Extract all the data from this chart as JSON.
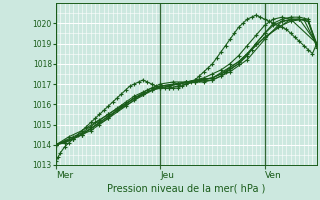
{
  "xlabel": "Pression niveau de la mer( hPa )",
  "bg_color": "#cce8df",
  "grid_color": "#ffffff",
  "line_color": "#1a5c1a",
  "vline_color": "#336633",
  "ylim": [
    1013,
    1021.0
  ],
  "yticks": [
    1013,
    1014,
    1015,
    1016,
    1017,
    1018,
    1019,
    1020
  ],
  "day_labels": [
    "Mer",
    "Jeu",
    "Ven"
  ],
  "day_positions": [
    0,
    48,
    96
  ],
  "xlim": [
    0,
    120
  ],
  "series": [
    {
      "x": [
        0,
        1,
        2,
        4,
        6,
        8,
        10,
        12,
        14,
        16,
        18,
        20,
        22,
        24,
        26,
        28,
        30,
        32,
        34,
        36,
        38,
        40,
        42,
        44,
        46,
        48,
        50,
        52,
        54,
        56,
        58,
        60,
        62,
        64,
        66,
        68,
        70,
        72,
        74,
        76,
        78,
        80,
        82,
        84,
        86,
        88,
        90,
        92,
        94,
        96,
        98,
        100,
        102,
        104,
        106,
        108,
        110,
        112,
        114,
        116,
        118,
        120
      ],
      "y": [
        1013.2,
        1013.4,
        1013.6,
        1013.9,
        1014.1,
        1014.3,
        1014.5,
        1014.7,
        1014.9,
        1015.1,
        1015.3,
        1015.5,
        1015.7,
        1015.9,
        1016.1,
        1016.3,
        1016.5,
        1016.7,
        1016.9,
        1017.0,
        1017.1,
        1017.2,
        1017.1,
        1017.0,
        1016.9,
        1016.8,
        1016.8,
        1016.8,
        1016.8,
        1016.8,
        1016.9,
        1017.0,
        1017.1,
        1017.2,
        1017.4,
        1017.6,
        1017.8,
        1018.0,
        1018.3,
        1018.6,
        1018.9,
        1019.2,
        1019.5,
        1019.8,
        1020.0,
        1020.2,
        1020.3,
        1020.4,
        1020.3,
        1020.2,
        1020.1,
        1020.0,
        1019.9,
        1019.8,
        1019.7,
        1019.5,
        1019.3,
        1019.1,
        1018.9,
        1018.7,
        1018.5,
        1019.0
      ]
    },
    {
      "x": [
        0,
        4,
        8,
        12,
        16,
        20,
        24,
        28,
        32,
        36,
        40,
        44,
        48,
        52,
        56,
        60,
        64,
        68,
        72,
        76,
        80,
        84,
        88,
        92,
        96,
        100,
        104,
        108,
        112,
        116,
        120
      ],
      "y": [
        1014.0,
        1014.1,
        1014.3,
        1014.5,
        1014.7,
        1015.0,
        1015.3,
        1015.7,
        1016.0,
        1016.3,
        1016.5,
        1016.7,
        1016.8,
        1016.9,
        1017.0,
        1017.1,
        1017.1,
        1017.1,
        1017.2,
        1017.4,
        1017.7,
        1018.0,
        1018.4,
        1019.0,
        1019.5,
        1019.9,
        1020.1,
        1020.2,
        1020.2,
        1020.1,
        1019.0
      ]
    },
    {
      "x": [
        0,
        4,
        8,
        12,
        16,
        20,
        24,
        28,
        32,
        36,
        40,
        44,
        48,
        52,
        56,
        60,
        64,
        68,
        72,
        76,
        80,
        84,
        88,
        92,
        96,
        100,
        104,
        108,
        112,
        116,
        120
      ],
      "y": [
        1014.0,
        1014.1,
        1014.3,
        1014.5,
        1014.8,
        1015.1,
        1015.4,
        1015.7,
        1016.0,
        1016.3,
        1016.5,
        1016.7,
        1016.8,
        1016.8,
        1016.9,
        1017.0,
        1017.1,
        1017.2,
        1017.3,
        1017.5,
        1017.8,
        1018.1,
        1018.5,
        1019.0,
        1019.5,
        1020.0,
        1020.2,
        1020.3,
        1020.3,
        1020.2,
        1018.9
      ]
    },
    {
      "x": [
        0,
        4,
        8,
        12,
        16,
        20,
        24,
        28,
        32,
        36,
        40,
        44,
        48,
        52,
        56,
        60,
        64,
        68,
        72,
        76,
        80,
        84,
        88,
        92,
        96,
        100,
        104,
        108,
        112,
        116,
        120
      ],
      "y": [
        1014.0,
        1014.2,
        1014.4,
        1014.6,
        1014.9,
        1015.2,
        1015.5,
        1015.8,
        1016.1,
        1016.4,
        1016.6,
        1016.8,
        1016.9,
        1016.9,
        1017.0,
        1017.1,
        1017.2,
        1017.3,
        1017.5,
        1017.7,
        1018.0,
        1018.4,
        1018.9,
        1019.4,
        1019.9,
        1020.2,
        1020.3,
        1020.2,
        1020.2,
        1020.1,
        1018.8
      ]
    },
    {
      "x": [
        0,
        6,
        12,
        18,
        24,
        30,
        36,
        42,
        48,
        54,
        60,
        66,
        72,
        78,
        84,
        90,
        96,
        102,
        108,
        114,
        120
      ],
      "y": [
        1014.0,
        1014.4,
        1014.7,
        1015.1,
        1015.5,
        1015.9,
        1016.3,
        1016.7,
        1017.0,
        1017.1,
        1017.1,
        1017.2,
        1017.3,
        1017.6,
        1018.0,
        1018.7,
        1019.3,
        1019.8,
        1020.1,
        1020.2,
        1018.9
      ]
    },
    {
      "x": [
        0,
        8,
        16,
        24,
        32,
        40,
        48,
        56,
        64,
        72,
        80,
        88,
        96,
        104,
        112,
        120
      ],
      "y": [
        1014.0,
        1014.3,
        1014.8,
        1015.3,
        1015.9,
        1016.5,
        1016.9,
        1017.0,
        1017.1,
        1017.2,
        1017.6,
        1018.2,
        1019.2,
        1020.1,
        1020.2,
        1019.0
      ]
    },
    {
      "x": [
        0,
        12,
        24,
        36,
        48,
        60,
        72,
        84,
        96,
        108,
        120
      ],
      "y": [
        1014.0,
        1014.5,
        1015.4,
        1016.2,
        1016.9,
        1017.1,
        1017.3,
        1018.1,
        1019.3,
        1020.2,
        1019.0
      ]
    }
  ]
}
